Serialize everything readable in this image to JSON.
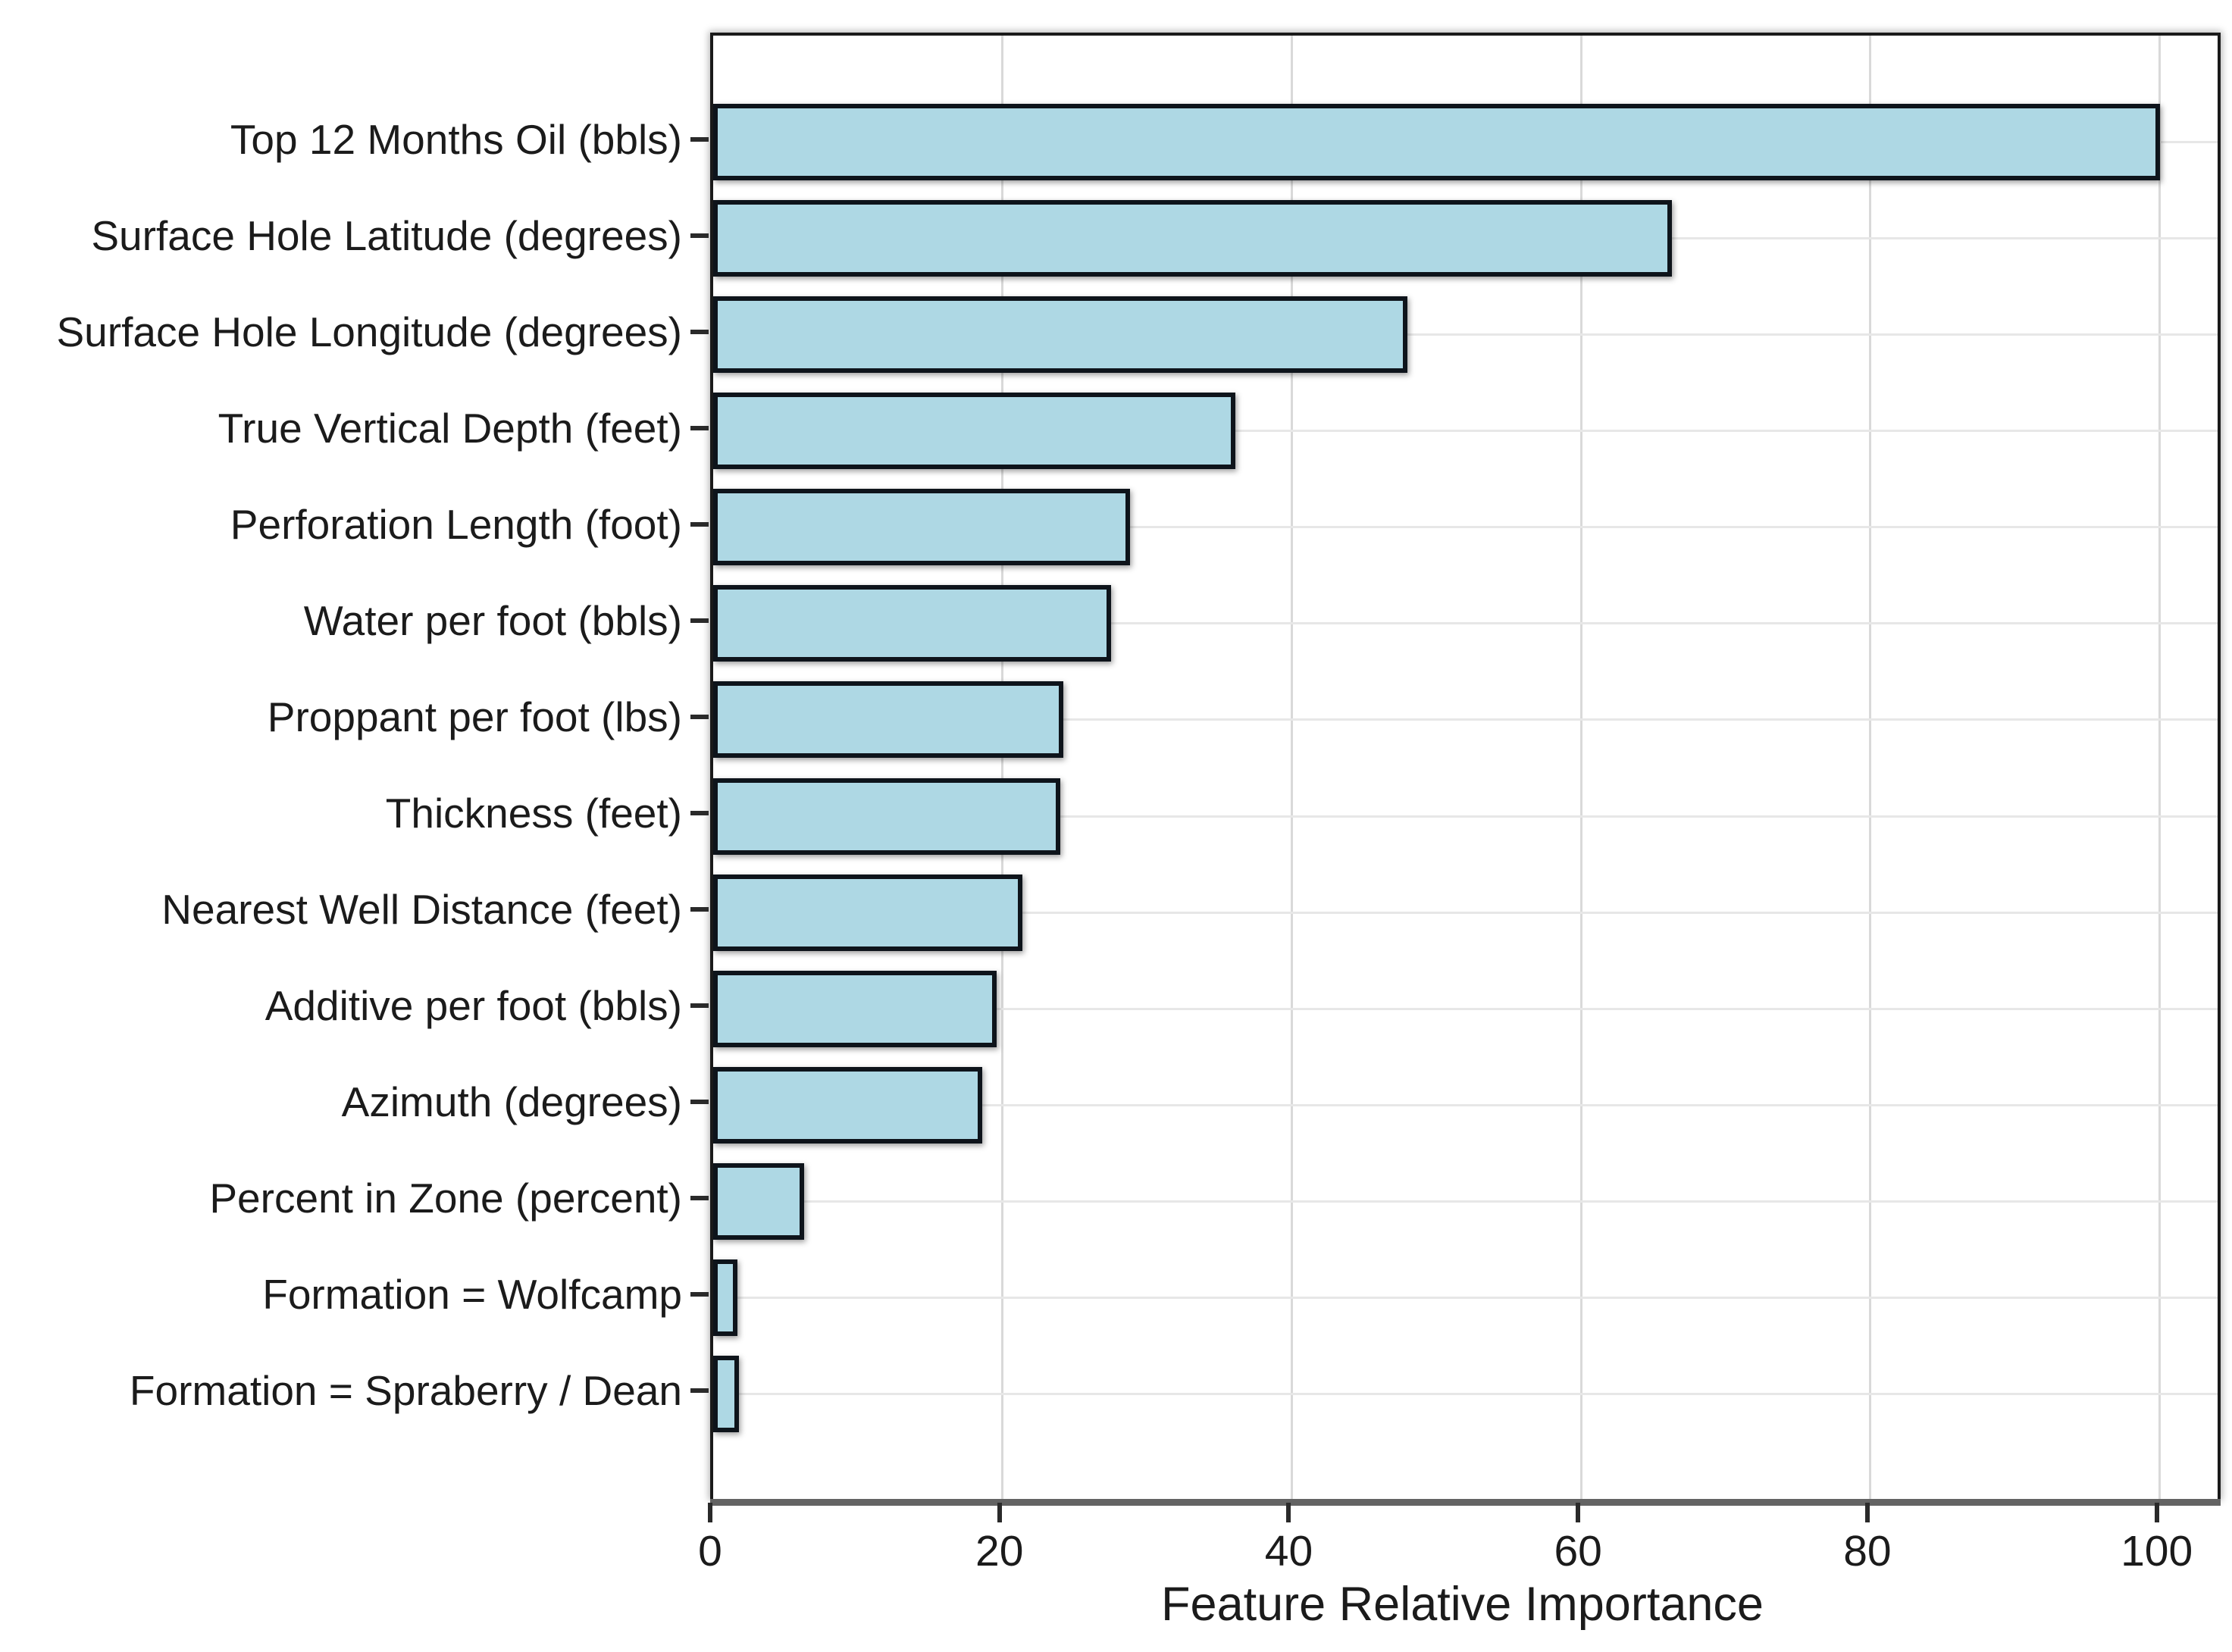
{
  "chart_data": {
    "type": "bar",
    "orientation": "horizontal",
    "title": "",
    "xlabel": "Feature Relative Importance",
    "ylabel": "",
    "xlim": [
      0,
      104
    ],
    "grid": true,
    "legend": false,
    "categories": [
      "Top 12 Months Oil (bbls)",
      "Surface Hole Latitude (degrees)",
      "Surface Hole Longitude (degrees)",
      "True Vertical Depth (feet)",
      "Perforation Length (foot)",
      "Water per foot (bbls)",
      "Proppant per foot (lbs)",
      "Thickness (feet)",
      "Nearest Well Distance (feet)",
      "Additive per foot (bbls)",
      "Azimuth (degrees)",
      "Percent in Zone (percent)",
      "Formation = Wolfcamp",
      "Formation = Spraberry / Dean"
    ],
    "values": [
      100,
      66.3,
      48,
      36.1,
      28.8,
      27.5,
      24.2,
      24,
      21.4,
      19.6,
      18.6,
      6.3,
      1.7,
      1.8
    ],
    "xticks": [
      0,
      20,
      40,
      60,
      80,
      100
    ],
    "xtick_labels": [
      "0",
      "20",
      "40",
      "60",
      "80",
      "100"
    ]
  },
  "colors": {
    "bar_fill": "#aed8e4",
    "bar_edge": "#0e141b",
    "grid_vertical": "#d9d9d9",
    "grid_horizontal": "#e7e7e7",
    "spine": "#1a1a1a",
    "bottom_spine": "#636363",
    "tick": "#2a2a2a",
    "text": "#1b1b1b"
  }
}
